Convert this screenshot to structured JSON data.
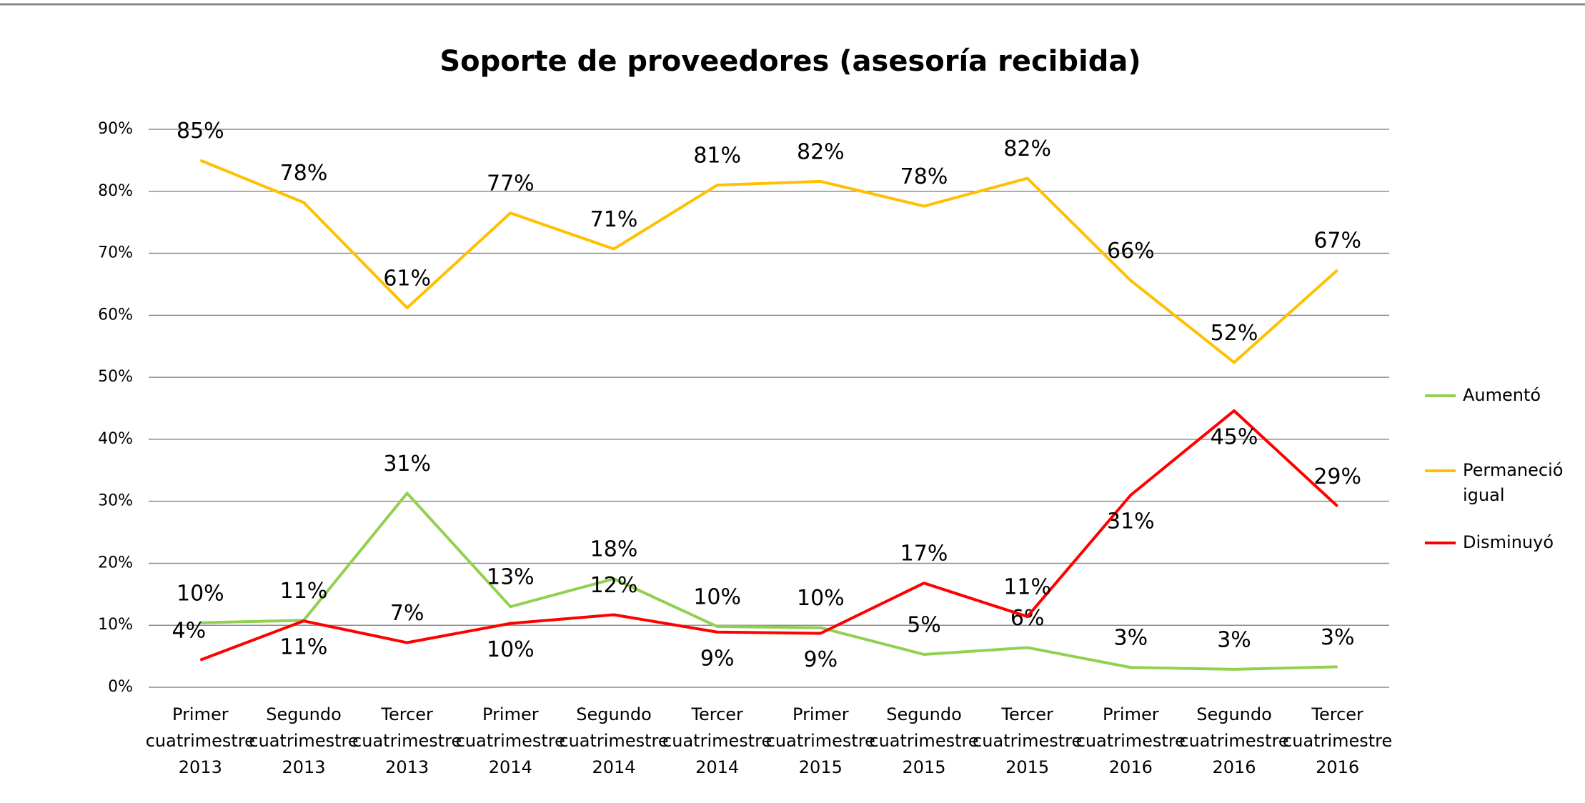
{
  "chart_data": {
    "type": "line",
    "title": "Soporte de proveedores (asesoría recibida)",
    "categories": [
      "Primer cuatrimestre 2013",
      "Segundo cuatrimestre 2013",
      "Tercer cuatrimestre 2013",
      "Primer cuatrimestre 2014",
      "Segundo cuatrimestre 2014",
      "Tercer cuatrimestre 2014",
      "Primer cuatrimestre 2015",
      "Segundo cuatrimestre 2015",
      "Tercer cuatrimestre 2015",
      "Primer cuatrimestre 2016",
      "Segundo cuatrimestre 2016",
      "Tercer cuatrimestre 2016"
    ],
    "series": [
      {
        "name": "Aumentó",
        "color": "#92d050",
        "values": [
          10.4,
          10.8,
          31.3,
          13,
          17.5,
          9.8,
          9.6,
          5.3,
          6.4,
          3.2,
          2.9,
          3.3
        ],
        "value_labels": [
          "10%",
          "11%",
          "31%",
          "13%",
          "18%",
          "10%",
          "10%",
          "5%",
          "6%",
          "3%",
          "3%",
          "3%"
        ]
      },
      {
        "name": "Permaneció igual",
        "color": "#ffc000",
        "values": [
          85,
          78.2,
          61.2,
          76.5,
          70.7,
          81,
          81.6,
          77.6,
          82.1,
          65.6,
          52.4,
          67.3
        ],
        "value_labels": [
          "85%",
          "78%",
          "61%",
          "77%",
          "71%",
          "81%",
          "82%",
          "78%",
          "82%",
          "66%",
          "52%",
          "67%"
        ]
      },
      {
        "name": "Disminuyó",
        "color": "#ff0000",
        "values": [
          4.4,
          10.7,
          7.2,
          10.3,
          11.7,
          8.9,
          8.7,
          16.8,
          11.4,
          31,
          44.6,
          29.2
        ],
        "value_labels": [
          "4%",
          "11%",
          "7%",
          "10%",
          "12%",
          "9%",
          "9%",
          "17%",
          "11%",
          "31%",
          "45%",
          "29%"
        ]
      }
    ],
    "ylim": [
      0,
      90
    ],
    "yticks": [
      {
        "value": 0,
        "label": "0%"
      },
      {
        "value": 10,
        "label": "10%"
      },
      {
        "value": 20,
        "label": "20%"
      },
      {
        "value": 30,
        "label": "30%"
      },
      {
        "value": 40,
        "label": "40%"
      },
      {
        "value": 50,
        "label": "50%"
      },
      {
        "value": 60,
        "label": "60%"
      },
      {
        "value": 70,
        "label": "70%"
      },
      {
        "value": 80,
        "label": "80%"
      },
      {
        "value": 90,
        "label": "90%"
      }
    ],
    "grid": true,
    "legend": "right"
  }
}
